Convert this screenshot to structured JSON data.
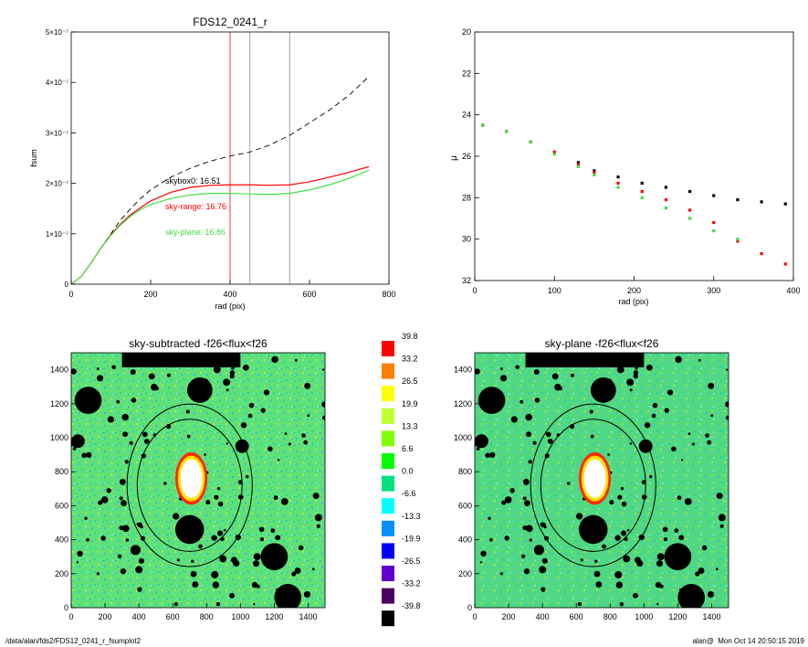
{
  "chart_data": [
    {
      "type": "line",
      "title": "FDS12_0241_r",
      "xlabel": "rad (pix)",
      "ylabel": "fsum",
      "xlim": [
        0,
        800
      ],
      "ylim": [
        0,
        5e-07
      ],
      "x_ticks": [
        "0",
        "200",
        "400",
        "600",
        "800"
      ],
      "y_ticks": [
        "0",
        "1×10⁻⁷",
        "2×10⁻⁷",
        "3×10⁻⁷",
        "4×10⁻⁷",
        "5×10⁻⁷"
      ],
      "vlines": [
        {
          "x": 400,
          "color": "#ff0000"
        },
        {
          "x": 450,
          "color": "#888888"
        },
        {
          "x": 550,
          "color": "#888888"
        }
      ],
      "series": [
        {
          "style": "dashed",
          "color": "#000000",
          "x": [
            0,
            25,
            50,
            75,
            100,
            125,
            150,
            175,
            200,
            250,
            300,
            350,
            400,
            450,
            500,
            550,
            600,
            650,
            700,
            750
          ],
          "y": [
            0,
            1.5e-08,
            4.2e-08,
            7.2e-08,
            1e-07,
            1.28e-07,
            1.5e-07,
            1.7e-07,
            1.87e-07,
            2.12e-07,
            2.3e-07,
            2.44e-07,
            2.54e-07,
            2.62e-07,
            2.76e-07,
            2.95e-07,
            3.2e-07,
            3.45e-07,
            3.75e-07,
            4.12e-07
          ]
        },
        {
          "style": "solid",
          "color": "#ff0000",
          "x": [
            0,
            25,
            50,
            75,
            100,
            125,
            150,
            175,
            200,
            250,
            300,
            350,
            400,
            450,
            500,
            550,
            600,
            650,
            700,
            750
          ],
          "y": [
            0,
            1.5e-08,
            4.2e-08,
            7.2e-08,
            9.8e-08,
            1.2e-07,
            1.38e-07,
            1.52e-07,
            1.65e-07,
            1.82e-07,
            1.92e-07,
            1.96e-07,
            1.97e-07,
            1.97e-07,
            1.96e-07,
            1.97e-07,
            2.03e-07,
            2.12e-07,
            2.22e-07,
            2.33e-07
          ]
        },
        {
          "style": "solid",
          "color": "#44dd44",
          "x": [
            0,
            25,
            50,
            75,
            100,
            125,
            150,
            175,
            200,
            250,
            300,
            350,
            400,
            450,
            500,
            550,
            600,
            650,
            700,
            750
          ],
          "y": [
            0,
            1.5e-08,
            4.2e-08,
            7.2e-08,
            9.7e-08,
            1.18e-07,
            1.35e-07,
            1.48e-07,
            1.58e-07,
            1.7e-07,
            1.77e-07,
            1.8e-07,
            1.8e-07,
            1.79e-07,
            1.78e-07,
            1.8e-07,
            1.87e-07,
            1.97e-07,
            2.1e-07,
            2.26e-07
          ]
        }
      ],
      "annotations": [
        {
          "text": "skybox0: 16.51",
          "color": "#000000"
        },
        {
          "text": "sky-range: 16.76",
          "color": "#ff0000"
        },
        {
          "text": "sky-plane: 16.86",
          "color": "#44dd44"
        }
      ]
    },
    {
      "type": "scatter",
      "xlabel": "rad (pix)",
      "ylabel": "μ",
      "xlim": [
        0,
        400
      ],
      "ylim": [
        32,
        20
      ],
      "x_ticks": [
        "0",
        "100",
        "200",
        "300",
        "400"
      ],
      "y_ticks": [
        "20",
        "22",
        "24",
        "26",
        "28",
        "30",
        "32"
      ],
      "series": [
        {
          "color": "#000000",
          "x": [
            10,
            40,
            70,
            100,
            130,
            150,
            180,
            210,
            240,
            270,
            300,
            330,
            360,
            390
          ],
          "y": [
            24.5,
            24.8,
            25.3,
            25.8,
            26.3,
            26.7,
            27.0,
            27.3,
            27.5,
            27.7,
            27.9,
            28.1,
            28.2,
            28.3
          ]
        },
        {
          "color": "#ff0000",
          "x": [
            10,
            40,
            70,
            100,
            130,
            150,
            180,
            210,
            240,
            270,
            300,
            330,
            360,
            390
          ],
          "y": [
            24.5,
            24.8,
            25.3,
            25.8,
            26.4,
            26.8,
            27.3,
            27.7,
            28.1,
            28.6,
            29.2,
            30.1,
            30.7,
            31.2
          ]
        },
        {
          "color": "#44dd44",
          "x": [
            10,
            40,
            70,
            100,
            130,
            150,
            180,
            210,
            240,
            270,
            300,
            330
          ],
          "y": [
            24.5,
            24.8,
            25.3,
            25.9,
            26.5,
            26.9,
            27.5,
            28.0,
            28.5,
            29.0,
            29.6,
            30.0
          ]
        }
      ]
    },
    {
      "type": "heatmap",
      "title": "sky-subtracted -f26<flux<f26",
      "xlim": [
        0,
        1500
      ],
      "ylim": [
        0,
        1500
      ],
      "x_ticks": [
        "0",
        "200",
        "400",
        "600",
        "800",
        "1000",
        "1200",
        "1400"
      ],
      "y_ticks": [
        "0",
        "200",
        "400",
        "600",
        "800",
        "1000",
        "1200",
        "1400"
      ],
      "ellipses": [
        {
          "cx": 700,
          "cy": 720,
          "rx": 370,
          "ry": 480
        },
        {
          "cx": 700,
          "cy": 720,
          "rx": 310,
          "ry": 390
        }
      ],
      "masks": [
        {
          "x": 100,
          "y": 1220,
          "r": 80
        },
        {
          "x": 760,
          "y": 1280,
          "r": 75
        },
        {
          "x": 1010,
          "y": 950,
          "r": 40
        },
        {
          "x": 700,
          "y": 460,
          "r": 85
        },
        {
          "x": 1200,
          "y": 300,
          "r": 80
        },
        {
          "x": 1280,
          "y": 60,
          "r": 80
        },
        {
          "x": 40,
          "y": 980,
          "r": 40
        },
        {
          "x": 380,
          "y": 340,
          "r": 30
        }
      ]
    },
    {
      "type": "heatmap",
      "title": "sky-plane -f26<flux<f26",
      "xlim": [
        0,
        1500
      ],
      "ylim": [
        0,
        1500
      ],
      "x_ticks": [
        "0",
        "200",
        "400",
        "600",
        "800",
        "1000",
        "1200",
        "1400"
      ],
      "y_ticks": [
        "0",
        "200",
        "400",
        "600",
        "800",
        "1000",
        "1200",
        "1400"
      ],
      "ellipses": [
        {
          "cx": 700,
          "cy": 720,
          "rx": 370,
          "ry": 480
        },
        {
          "cx": 700,
          "cy": 720,
          "rx": 310,
          "ry": 390
        }
      ],
      "masks": [
        {
          "x": 100,
          "y": 1220,
          "r": 80
        },
        {
          "x": 760,
          "y": 1280,
          "r": 75
        },
        {
          "x": 1010,
          "y": 950,
          "r": 40
        },
        {
          "x": 700,
          "y": 460,
          "r": 85
        },
        {
          "x": 1200,
          "y": 300,
          "r": 80
        },
        {
          "x": 1280,
          "y": 60,
          "r": 80
        },
        {
          "x": 40,
          "y": 980,
          "r": 40
        },
        {
          "x": 380,
          "y": 340,
          "r": 30
        }
      ]
    }
  ],
  "colorbar": {
    "levels": [
      {
        "label": "39.8",
        "color": "#ff0000"
      },
      {
        "label": "33.2",
        "color": "#ff8000"
      },
      {
        "label": "26.5",
        "color": "#ffff00"
      },
      {
        "label": "19.9",
        "color": "#c0ff30"
      },
      {
        "label": "13.3",
        "color": "#80ff00"
      },
      {
        "label": "6.6",
        "color": "#00ff00"
      },
      {
        "label": "0.0",
        "color": "#00e080"
      },
      {
        "label": "-6.6",
        "color": "#00ffff"
      },
      {
        "label": "-13.3",
        "color": "#0090ff"
      },
      {
        "label": "-19.9",
        "color": "#0000ff"
      },
      {
        "label": "-26.5",
        "color": "#6000d0"
      },
      {
        "label": "-33.2",
        "color": "#4b0060"
      },
      {
        "label": "-39.8",
        "color": "#000000"
      }
    ]
  },
  "footer": {
    "left": "/data/alan/fds2/FDS12_0241_r_fsumplot2",
    "right": "alan@  Mon Oct 14 20:50:15 2019"
  }
}
